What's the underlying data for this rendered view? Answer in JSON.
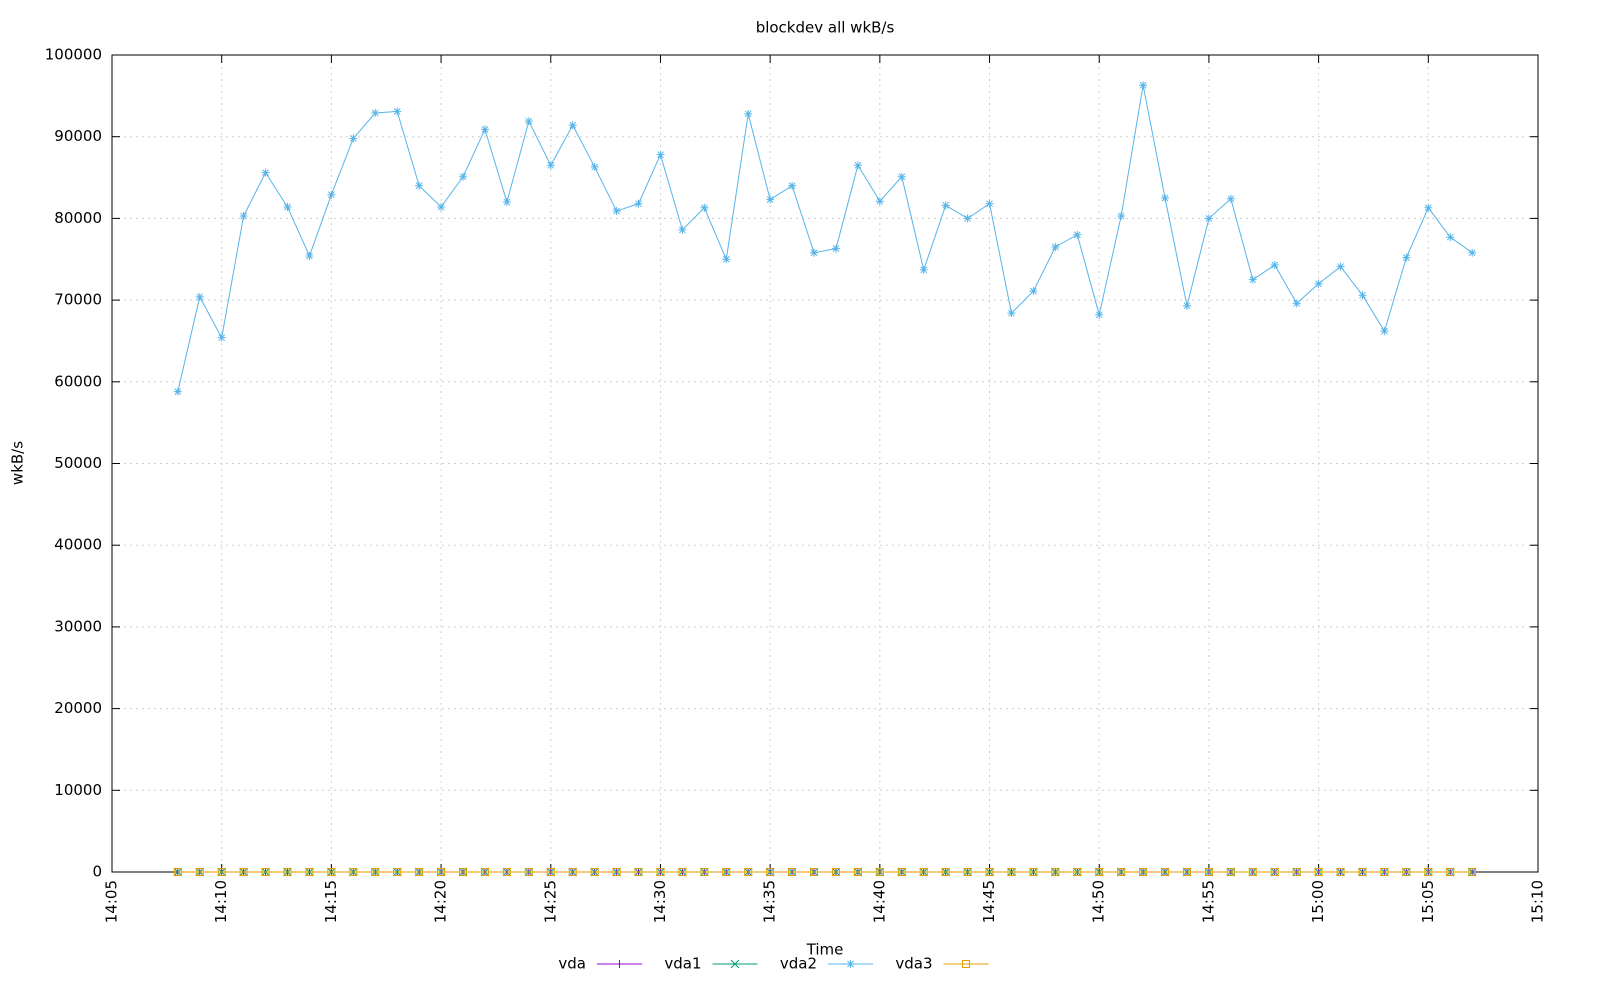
{
  "chart_data": {
    "type": "line",
    "title": "blockdev all wkB/s",
    "xlabel": "Time",
    "ylabel": "wkB/s",
    "x": [
      "14:08",
      "14:09",
      "14:10",
      "14:11",
      "14:12",
      "14:13",
      "14:14",
      "14:15",
      "14:16",
      "14:17",
      "14:18",
      "14:19",
      "14:20",
      "14:21",
      "14:22",
      "14:23",
      "14:24",
      "14:25",
      "14:26",
      "14:27",
      "14:28",
      "14:29",
      "14:30",
      "14:31",
      "14:32",
      "14:33",
      "14:34",
      "14:35",
      "14:36",
      "14:37",
      "14:38",
      "14:39",
      "14:40",
      "14:41",
      "14:42",
      "14:43",
      "14:44",
      "14:45",
      "14:46",
      "14:47",
      "14:48",
      "14:49",
      "14:50",
      "14:51",
      "14:52",
      "14:53",
      "14:54",
      "14:55",
      "14:56",
      "14:57",
      "14:58",
      "14:59",
      "15:00",
      "15:01",
      "15:02",
      "15:03",
      "15:04",
      "15:05",
      "15:06",
      "15:07"
    ],
    "series": [
      {
        "name": "vda",
        "color": "#9400d3",
        "marker": "plus",
        "values": [
          0,
          0,
          0,
          0,
          0,
          0,
          0,
          0,
          0,
          0,
          0,
          0,
          0,
          0,
          0,
          0,
          0,
          0,
          0,
          0,
          0,
          0,
          0,
          0,
          0,
          0,
          0,
          0,
          0,
          0,
          0,
          0,
          0,
          0,
          0,
          0,
          0,
          0,
          0,
          0,
          0,
          0,
          0,
          0,
          0,
          0,
          0,
          0,
          0,
          0,
          0,
          0,
          0,
          0,
          0,
          0,
          0,
          0,
          0,
          0
        ]
      },
      {
        "name": "vda1",
        "color": "#009e73",
        "marker": "cross",
        "values": [
          0,
          0,
          0,
          0,
          0,
          0,
          0,
          0,
          0,
          0,
          0,
          0,
          0,
          0,
          0,
          0,
          0,
          0,
          0,
          0,
          0,
          0,
          0,
          0,
          0,
          0,
          0,
          0,
          0,
          0,
          0,
          0,
          0,
          0,
          0,
          0,
          0,
          0,
          0,
          0,
          0,
          0,
          0,
          0,
          0,
          0,
          0,
          0,
          0,
          0,
          0,
          0,
          0,
          0,
          0,
          0,
          0,
          0,
          0,
          0
        ]
      },
      {
        "name": "vda2",
        "color": "#56b4e9",
        "marker": "star",
        "values": [
          58800,
          70400,
          65400,
          80300,
          85600,
          81400,
          75400,
          82900,
          89800,
          92900,
          93100,
          84000,
          81400,
          85100,
          90900,
          82000,
          91900,
          86500,
          91400,
          86300,
          80900,
          81800,
          87800,
          78600,
          81300,
          75000,
          92800,
          82300,
          84000,
          75800,
          76300,
          86500,
          82100,
          85100,
          73700,
          81600,
          80000,
          81800,
          68400,
          71100,
          76500,
          78000,
          68200,
          80300,
          96300,
          82500,
          69300,
          80000,
          82400,
          72500,
          74300,
          69600,
          72000,
          74100,
          70600,
          66200,
          75200,
          81300,
          77700,
          75800
        ]
      },
      {
        "name": "vda3",
        "color": "#e69f00",
        "marker": "square",
        "values": [
          0,
          0,
          0,
          0,
          0,
          0,
          0,
          0,
          0,
          0,
          0,
          0,
          0,
          0,
          0,
          0,
          0,
          0,
          0,
          0,
          0,
          0,
          0,
          0,
          0,
          0,
          0,
          0,
          0,
          0,
          0,
          0,
          0,
          0,
          0,
          0,
          0,
          0,
          0,
          0,
          0,
          0,
          0,
          0,
          0,
          0,
          0,
          0,
          0,
          0,
          0,
          0,
          0,
          0,
          0,
          0,
          0,
          0,
          0,
          0
        ]
      }
    ],
    "xlim": [
      "14:05",
      "15:10"
    ],
    "xticks": [
      "14:05",
      "14:10",
      "14:15",
      "14:20",
      "14:25",
      "14:30",
      "14:35",
      "14:40",
      "14:45",
      "14:50",
      "14:55",
      "15:00",
      "15:05",
      "15:10"
    ],
    "ylim": [
      0,
      100000
    ],
    "yticks": [
      0,
      10000,
      20000,
      30000,
      40000,
      50000,
      60000,
      70000,
      80000,
      90000,
      100000
    ],
    "grid": true,
    "legend": "bottom"
  }
}
